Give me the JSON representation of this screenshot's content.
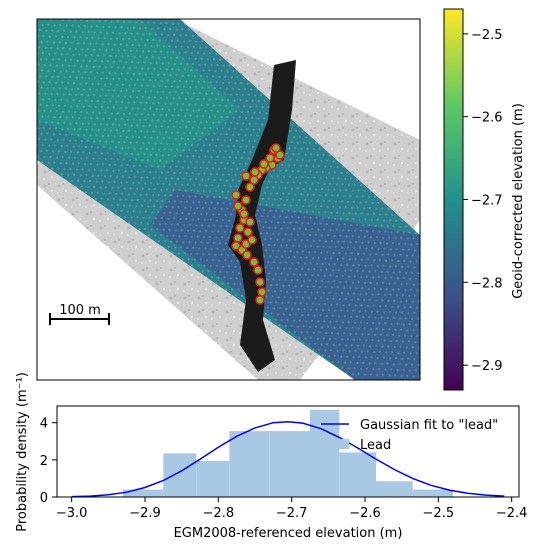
{
  "chart_data": [
    {
      "type": "scatter",
      "panel": "map",
      "scale_bar_label": "100 m",
      "colorbar": {
        "label": "Geoid-corrected elevation (m)",
        "ticks": [
          -2.5,
          -2.6,
          -2.7,
          -2.8,
          -2.9
        ],
        "tick_labels": [
          "−2.5",
          "−2.6",
          "−2.7",
          "−2.8",
          "−2.9"
        ],
        "range": [
          -2.93,
          -2.47
        ],
        "colormap": "viridis",
        "colors": [
          "#440154",
          "#3b528b",
          "#21918c",
          "#5ec962",
          "#fde725"
        ]
      },
      "lead_marker_color": "#e0201c",
      "lead_marker_fill": "#7cbc3a"
    },
    {
      "type": "bar",
      "panel": "histogram",
      "xlabel": "EGM2008-referenced elevation (m)",
      "ylabel": "Probability density (m⁻¹)",
      "xlim": [
        -3.02,
        -2.39
      ],
      "ylim": [
        0,
        4.9
      ],
      "x_ticks": [
        -3.0,
        -2.9,
        -2.8,
        -2.7,
        -2.6,
        -2.5,
        -2.4
      ],
      "x_tick_labels": [
        "−3.0",
        "−2.9",
        "−2.8",
        "−2.7",
        "−2.6",
        "−2.5",
        "−2.4"
      ],
      "y_ticks": [
        0,
        2,
        4
      ],
      "y_tick_labels": [
        "0",
        "2",
        "4"
      ],
      "bin_edges": [
        -2.93,
        -2.875,
        -2.83,
        -2.785,
        -2.73,
        -2.675,
        -2.635,
        -2.585,
        -2.535,
        -2.48
      ],
      "values": [
        0.4,
        2.35,
        1.95,
        3.55,
        3.55,
        4.7,
        2.4,
        0.85,
        0.4
      ],
      "bar_color": "#a9c8e3",
      "legend": {
        "placement": "top-right",
        "entries": [
          "Gaussian fit to \"lead\"",
          "Lead"
        ]
      },
      "series": [
        {
          "name": "Gaussian fit to \"lead\"",
          "kind": "line",
          "color": "#0000ff",
          "x": [
            -3.0,
            -2.975,
            -2.95,
            -2.925,
            -2.9,
            -2.875,
            -2.85,
            -2.825,
            -2.8,
            -2.775,
            -2.75,
            -2.725,
            -2.705,
            -2.685,
            -2.66,
            -2.635,
            -2.61,
            -2.585,
            -2.56,
            -2.535,
            -2.51,
            -2.485,
            -2.46,
            -2.435,
            -2.41
          ],
          "y": [
            0.02,
            0.05,
            0.12,
            0.26,
            0.51,
            0.89,
            1.41,
            2.03,
            2.68,
            3.27,
            3.72,
            4.0,
            4.05,
            3.98,
            3.68,
            3.21,
            2.64,
            2.04,
            1.48,
            1.0,
            0.63,
            0.37,
            0.2,
            0.1,
            0.05
          ]
        },
        {
          "name": "Lead",
          "kind": "histogram"
        }
      ]
    }
  ]
}
